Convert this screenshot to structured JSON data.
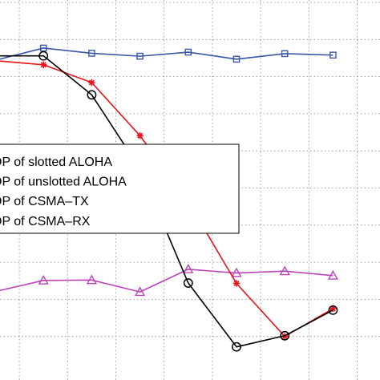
{
  "chart_data": {
    "type": "line",
    "grid": true,
    "xlim": [
      0,
      9
    ],
    "ylim": [
      0,
      1
    ],
    "x": [
      0,
      1,
      2,
      3,
      4,
      5,
      6,
      7,
      8,
      9
    ],
    "legend": {
      "placement": "center-left",
      "entries": [
        "OP of slotted ALOHA",
        "OP of unslotted ALOHA",
        "OP of CSMA–TX",
        "OP of CSMA–RX"
      ]
    },
    "series": [
      {
        "name": "OP of slotted ALOHA",
        "color": "#000000",
        "marker": "circle",
        "values": [
          0.856,
          0.856,
          0.751,
          0.552,
          0.244,
          0.072,
          0.102,
          0.171,
          null,
          null
        ]
      },
      {
        "name": "OP of unslotted ALOHA",
        "color": "#e8141a",
        "marker": "asterisk",
        "values": [
          0.843,
          0.832,
          0.784,
          0.641,
          0.463,
          0.243,
          0.1,
          0.175,
          null,
          null
        ]
      },
      {
        "name": "OP of CSMA–TX",
        "color": "#3b55a6",
        "marker": "square",
        "values": [
          0.844,
          0.877,
          0.863,
          0.855,
          0.866,
          0.847,
          0.862,
          0.858,
          null,
          null
        ]
      },
      {
        "name": "OP of CSMA–RX",
        "color": "#bb44bb",
        "marker": "triangle",
        "values": [
          0.221,
          0.251,
          0.252,
          0.22,
          0.281,
          0.271,
          0.276,
          0.264,
          null,
          null
        ]
      }
    ]
  }
}
